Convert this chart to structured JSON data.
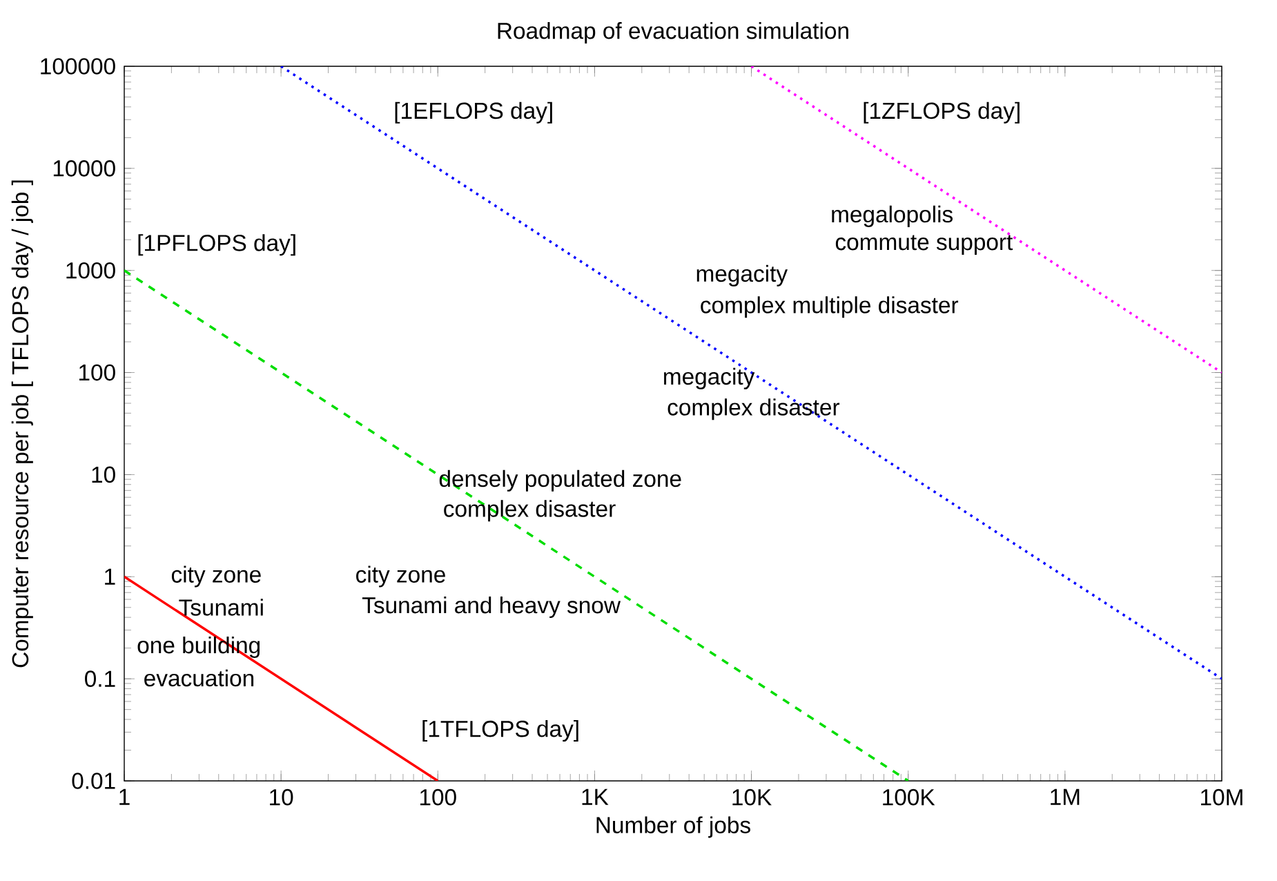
{
  "chart_data": {
    "type": "line",
    "title": "Roadmap of evacuation simulation",
    "xlabel": "Number of jobs",
    "ylabel": "Computer resource per job [ TFLOPS day / job ]",
    "log": "xy",
    "grid": false,
    "xlim": [
      1,
      10000000
    ],
    "ylim": [
      0.01,
      100000
    ],
    "xticks": [
      1,
      10,
      100,
      {
        "value": 1000,
        "label": "1K"
      },
      {
        "value": 10000,
        "label": "10K"
      },
      {
        "value": 100000,
        "label": "100K"
      },
      {
        "value": 1000000,
        "label": "1M"
      },
      {
        "value": 10000000,
        "label": "10M"
      }
    ],
    "yticks": [
      0.01,
      0.1,
      1,
      10,
      100,
      1000,
      10000,
      100000
    ],
    "series": [
      {
        "color": "#ff0000",
        "line_style": "solid",
        "x": [
          1,
          100
        ],
        "values": [
          1,
          0.01
        ]
      },
      {
        "color": "#00dd00",
        "line_style": "dashed",
        "x": [
          1,
          100000
        ],
        "values": [
          1000,
          0.01
        ]
      },
      {
        "color": "#0000ff",
        "line_style": "dotted",
        "x": [
          10,
          10000000
        ],
        "values": [
          100000,
          0.1
        ]
      },
      {
        "color": "#ff00ff",
        "line_style": "dotted",
        "x": [
          10000,
          10000000
        ],
        "values": [
          100000,
          100
        ]
      }
    ],
    "annotations": [
      "[1EFLOPS day]",
      "[1ZFLOPS day]",
      "[1PFLOPS day]",
      "megalopolis",
      "commute support",
      "megacity",
      "complex multiple disaster",
      "megacity",
      "complex disaster",
      "densely populated zone",
      "complex disaster",
      "city zone",
      "Tsunami",
      "city zone",
      "Tsunami and heavy snow",
      "one building",
      "evacuation",
      "[1TFLOPS day]"
    ]
  }
}
